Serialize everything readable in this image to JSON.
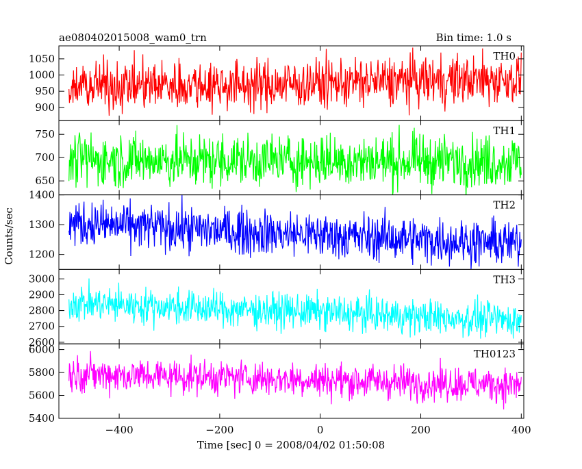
{
  "header": {
    "title": "ae080402015008_wam0_trn",
    "bin_time": "Bin time: 1.0 s"
  },
  "chart_data": {
    "type": "line",
    "title": "ae080402015008_wam0_trn",
    "xlabel": "Time [sec] 0 = 2008/04/02 01:50:08",
    "ylabel": "Counts/sec",
    "xlim": [
      -520,
      405
    ],
    "x_ticks": [
      -400,
      -200,
      0,
      200,
      400
    ],
    "x_tick_labels": [
      "−400",
      "−200",
      "0",
      "200",
      "400"
    ],
    "x_data_range": [
      -500,
      400
    ],
    "grid": false,
    "legend": "none",
    "series": [
      {
        "name": "TH0",
        "color": "#ff0000",
        "ylim": [
          860,
          1090
        ],
        "y_ticks": [
          900,
          950,
          1000,
          1050
        ],
        "trend": [
          [
            -500,
            965
          ],
          [
            -300,
            970
          ],
          [
            -100,
            970
          ],
          [
            0,
            975
          ],
          [
            200,
            982
          ],
          [
            400,
            988
          ]
        ],
        "noise": 38
      },
      {
        "name": "TH1",
        "color": "#00ff00",
        "ylim": [
          620,
          780
        ],
        "y_ticks": [
          650,
          700,
          750
        ],
        "trend": [
          [
            -500,
            695
          ],
          [
            0,
            693
          ],
          [
            400,
            692
          ]
        ],
        "noise": 28
      },
      {
        "name": "TH2",
        "color": "#0000ff",
        "ylim": [
          1150,
          1400
        ],
        "y_ticks": [
          1200,
          1300,
          1400
        ],
        "trend": [
          [
            -500,
            1305
          ],
          [
            -200,
            1280
          ],
          [
            0,
            1265
          ],
          [
            200,
            1250
          ],
          [
            400,
            1235
          ]
        ],
        "noise": 38
      },
      {
        "name": "TH3",
        "color": "#00ffff",
        "ylim": [
          2590,
          3060
        ],
        "y_ticks": [
          2600,
          2700,
          2800,
          2900,
          3000
        ],
        "trend": [
          [
            -500,
            2850
          ],
          [
            -200,
            2810
          ],
          [
            0,
            2790
          ],
          [
            200,
            2760
          ],
          [
            400,
            2740
          ]
        ],
        "noise": 55
      },
      {
        "name": "TH0123",
        "color": "#ff00ff",
        "ylim": [
          5400,
          6050
        ],
        "y_ticks": [
          5400,
          5600,
          5800,
          6000
        ],
        "trend": [
          [
            -500,
            5790
          ],
          [
            -200,
            5760
          ],
          [
            0,
            5735
          ],
          [
            200,
            5710
          ],
          [
            400,
            5690
          ]
        ],
        "noise": 75
      }
    ]
  }
}
